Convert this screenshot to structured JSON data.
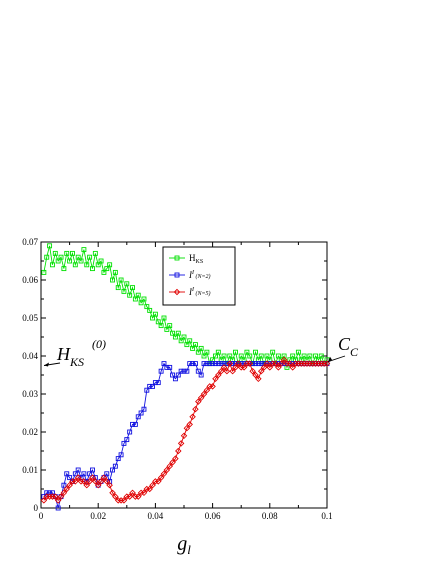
{
  "chart_data": {
    "type": "line",
    "title": "",
    "xlim": [
      0,
      0.1
    ],
    "ylim": [
      0,
      0.07
    ],
    "xticks": [
      "0",
      "0.02",
      "0.04",
      "0.06",
      "0.08",
      "0.1"
    ],
    "yticks": [
      "0",
      "0.01",
      "0.02",
      "0.03",
      "0.04",
      "0.05",
      "0.06",
      "0.07"
    ],
    "xlabel": {
      "main": "g",
      "sub": "l"
    },
    "ylabel": "",
    "grid": false,
    "legend_position": "top-center",
    "annotations": {
      "hks0": {
        "main": "H",
        "sub": "KS",
        "sup": "(0)",
        "arrow_to": [
          0,
          0.0375
        ]
      },
      "cc": {
        "main": "C",
        "sub": "C",
        "arrow_to": [
          0.1,
          0.0385
        ]
      }
    },
    "series": [
      {
        "name": "H",
        "name_sub": "KS",
        "color": "#00e000",
        "marker": "square",
        "x": [
          0.001,
          0.002,
          0.003,
          0.004,
          0.005,
          0.006,
          0.007,
          0.008,
          0.009,
          0.01,
          0.011,
          0.012,
          0.013,
          0.014,
          0.015,
          0.016,
          0.017,
          0.018,
          0.019,
          0.02,
          0.021,
          0.022,
          0.023,
          0.024,
          0.025,
          0.026,
          0.027,
          0.028,
          0.029,
          0.03,
          0.031,
          0.032,
          0.033,
          0.034,
          0.035,
          0.036,
          0.037,
          0.038,
          0.039,
          0.04,
          0.041,
          0.042,
          0.043,
          0.044,
          0.045,
          0.046,
          0.047,
          0.048,
          0.049,
          0.05,
          0.051,
          0.052,
          0.053,
          0.054,
          0.055,
          0.056,
          0.057,
          0.058,
          0.059,
          0.06,
          0.061,
          0.062,
          0.063,
          0.064,
          0.065,
          0.066,
          0.067,
          0.068,
          0.069,
          0.07,
          0.071,
          0.072,
          0.073,
          0.074,
          0.075,
          0.076,
          0.077,
          0.078,
          0.079,
          0.08,
          0.081,
          0.082,
          0.083,
          0.084,
          0.085,
          0.086,
          0.087,
          0.088,
          0.089,
          0.09,
          0.091,
          0.092,
          0.093,
          0.094,
          0.095,
          0.096,
          0.097,
          0.098,
          0.099,
          0.1
        ],
        "y": [
          0.062,
          0.066,
          0.069,
          0.064,
          0.067,
          0.065,
          0.066,
          0.063,
          0.067,
          0.065,
          0.067,
          0.064,
          0.066,
          0.065,
          0.068,
          0.064,
          0.066,
          0.063,
          0.067,
          0.064,
          0.065,
          0.062,
          0.063,
          0.064,
          0.06,
          0.062,
          0.058,
          0.06,
          0.057,
          0.059,
          0.056,
          0.058,
          0.055,
          0.056,
          0.054,
          0.055,
          0.053,
          0.052,
          0.05,
          0.051,
          0.049,
          0.048,
          0.05,
          0.047,
          0.048,
          0.046,
          0.045,
          0.046,
          0.044,
          0.045,
          0.043,
          0.044,
          0.042,
          0.043,
          0.041,
          0.042,
          0.04,
          0.041,
          0.038,
          0.039,
          0.04,
          0.041,
          0.039,
          0.04,
          0.038,
          0.04,
          0.039,
          0.041,
          0.038,
          0.04,
          0.039,
          0.041,
          0.04,
          0.038,
          0.041,
          0.039,
          0.04,
          0.038,
          0.04,
          0.039,
          0.041,
          0.038,
          0.04,
          0.039,
          0.04,
          0.037,
          0.039,
          0.04,
          0.039,
          0.041,
          0.039,
          0.04,
          0.039,
          0.04,
          0.038,
          0.04,
          0.039,
          0.04,
          0.038,
          0.039
        ]
      },
      {
        "name": "I",
        "name_sup": "I",
        "name_paren": "(N=2)",
        "color": "#1010e0",
        "marker": "square",
        "x": [
          0.001,
          0.002,
          0.003,
          0.004,
          0.005,
          0.006,
          0.007,
          0.008,
          0.009,
          0.01,
          0.011,
          0.012,
          0.013,
          0.014,
          0.015,
          0.016,
          0.017,
          0.018,
          0.019,
          0.02,
          0.021,
          0.022,
          0.023,
          0.024,
          0.025,
          0.026,
          0.027,
          0.028,
          0.029,
          0.03,
          0.031,
          0.032,
          0.033,
          0.034,
          0.035,
          0.036,
          0.037,
          0.038,
          0.039,
          0.04,
          0.041,
          0.042,
          0.043,
          0.044,
          0.045,
          0.046,
          0.047,
          0.048,
          0.049,
          0.05,
          0.051,
          0.052,
          0.053,
          0.054,
          0.055,
          0.056,
          0.057,
          0.058,
          0.059,
          0.06,
          0.061,
          0.062,
          0.063,
          0.064,
          0.065,
          0.066,
          0.067,
          0.068,
          0.069,
          0.07,
          0.071,
          0.072,
          0.073,
          0.074,
          0.075,
          0.076,
          0.077,
          0.078,
          0.079,
          0.08,
          0.081,
          0.082,
          0.083,
          0.084,
          0.085,
          0.086,
          0.087,
          0.088,
          0.089,
          0.09,
          0.091,
          0.092,
          0.093,
          0.094,
          0.095,
          0.096,
          0.097,
          0.098,
          0.099,
          0.1
        ],
        "y": [
          0.003,
          0.004,
          0.004,
          0.004,
          0.003,
          0.0,
          0.003,
          0.006,
          0.009,
          0.008,
          0.007,
          0.009,
          0.01,
          0.008,
          0.009,
          0.007,
          0.009,
          0.01,
          0.008,
          0.006,
          0.007,
          0.008,
          0.009,
          0.007,
          0.01,
          0.011,
          0.013,
          0.014,
          0.017,
          0.018,
          0.02,
          0.022,
          0.022,
          0.024,
          0.025,
          0.026,
          0.031,
          0.032,
          0.032,
          0.033,
          0.033,
          0.036,
          0.038,
          0.037,
          0.037,
          0.035,
          0.034,
          0.035,
          0.036,
          0.036,
          0.036,
          0.038,
          0.038,
          0.038,
          0.036,
          0.035,
          0.038,
          0.038,
          0.038,
          0.038,
          0.038,
          0.038,
          0.038,
          0.038,
          0.038,
          0.038,
          0.038,
          0.038,
          0.038,
          0.038,
          0.038,
          0.038,
          0.038,
          0.038,
          0.038,
          0.038,
          0.038,
          0.038,
          0.038,
          0.038,
          0.038,
          0.038,
          0.038,
          0.038,
          0.038,
          0.038,
          0.038,
          0.038,
          0.038,
          0.038,
          0.038,
          0.038,
          0.038,
          0.038,
          0.038,
          0.038,
          0.038,
          0.038,
          0.038,
          0.038
        ]
      },
      {
        "name": "I",
        "name_sup": "I",
        "name_paren": "(N=5)",
        "color": "#e00000",
        "marker": "diamond",
        "x": [
          0.001,
          0.002,
          0.003,
          0.004,
          0.005,
          0.006,
          0.007,
          0.008,
          0.009,
          0.01,
          0.011,
          0.012,
          0.013,
          0.014,
          0.015,
          0.016,
          0.017,
          0.018,
          0.019,
          0.02,
          0.021,
          0.022,
          0.023,
          0.024,
          0.025,
          0.026,
          0.027,
          0.028,
          0.029,
          0.03,
          0.031,
          0.032,
          0.033,
          0.034,
          0.035,
          0.036,
          0.037,
          0.038,
          0.039,
          0.04,
          0.041,
          0.042,
          0.043,
          0.044,
          0.045,
          0.046,
          0.047,
          0.048,
          0.049,
          0.05,
          0.051,
          0.052,
          0.053,
          0.054,
          0.055,
          0.056,
          0.057,
          0.058,
          0.059,
          0.06,
          0.061,
          0.062,
          0.063,
          0.064,
          0.065,
          0.066,
          0.067,
          0.068,
          0.069,
          0.07,
          0.071,
          0.072,
          0.073,
          0.074,
          0.075,
          0.076,
          0.077,
          0.078,
          0.079,
          0.08,
          0.081,
          0.082,
          0.083,
          0.084,
          0.085,
          0.086,
          0.087,
          0.088,
          0.089,
          0.09,
          0.091,
          0.092,
          0.093,
          0.094,
          0.095,
          0.096,
          0.097,
          0.098,
          0.099,
          0.1
        ],
        "y": [
          0.002,
          0.003,
          0.003,
          0.003,
          0.003,
          0.002,
          0.003,
          0.004,
          0.005,
          0.006,
          0.007,
          0.007,
          0.008,
          0.007,
          0.007,
          0.006,
          0.007,
          0.008,
          0.007,
          0.006,
          0.007,
          0.008,
          0.007,
          0.006,
          0.004,
          0.003,
          0.002,
          0.002,
          0.002,
          0.003,
          0.003,
          0.004,
          0.003,
          0.003,
          0.004,
          0.004,
          0.005,
          0.005,
          0.006,
          0.007,
          0.007,
          0.008,
          0.009,
          0.01,
          0.011,
          0.012,
          0.013,
          0.015,
          0.017,
          0.019,
          0.021,
          0.022,
          0.024,
          0.026,
          0.028,
          0.029,
          0.03,
          0.031,
          0.032,
          0.032,
          0.034,
          0.035,
          0.036,
          0.037,
          0.036,
          0.038,
          0.036,
          0.037,
          0.038,
          0.037,
          0.037,
          0.038,
          0.038,
          0.036,
          0.035,
          0.034,
          0.036,
          0.037,
          0.038,
          0.037,
          0.038,
          0.038,
          0.037,
          0.038,
          0.039,
          0.038,
          0.038,
          0.037,
          0.038,
          0.038,
          0.038,
          0.038,
          0.038,
          0.038,
          0.038,
          0.038,
          0.038,
          0.038,
          0.038,
          0.038
        ]
      }
    ]
  }
}
